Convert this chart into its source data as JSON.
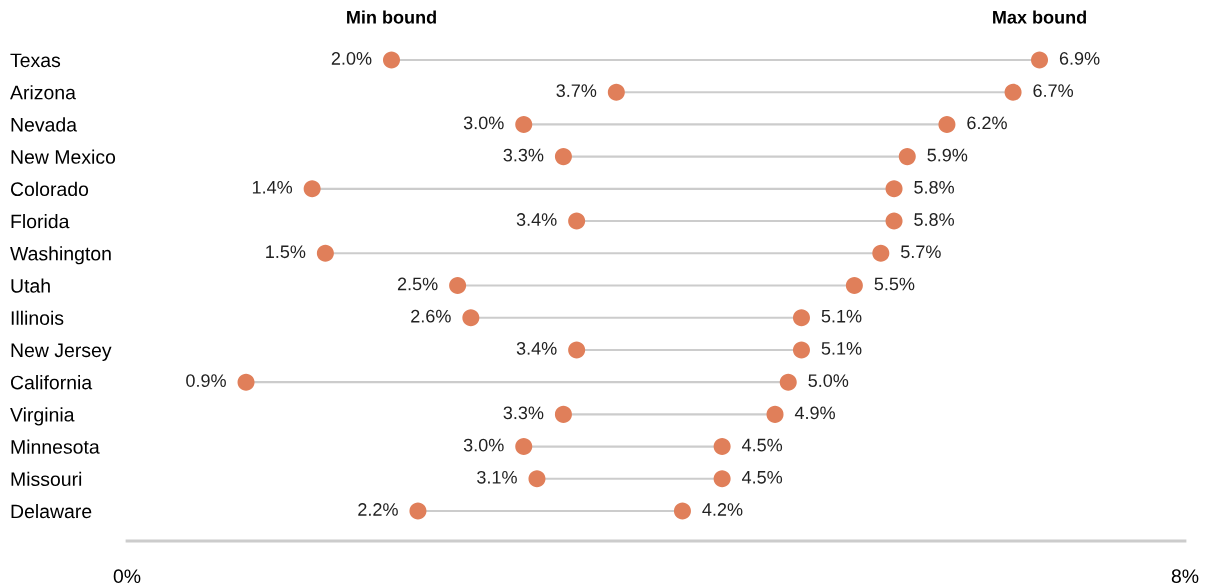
{
  "chart_data": {
    "type": "scatter",
    "orientation": "horizontal",
    "categories": [
      "Texas",
      "Arizona",
      "Nevada",
      "New Mexico",
      "Colorado",
      "Florida",
      "Washington",
      "Utah",
      "Illinois",
      "New Jersey",
      "California",
      "Virginia",
      "Minnesota",
      "Missouri",
      "Delaware"
    ],
    "series": [
      {
        "name": "Min bound",
        "color": "#e07f5a",
        "values": [
          2.0,
          3.7,
          3.0,
          3.3,
          1.4,
          3.4,
          1.5,
          2.5,
          2.6,
          3.4,
          0.9,
          3.3,
          3.0,
          3.1,
          2.2
        ],
        "value_labels": [
          "2.0%",
          "3.7%",
          "3.0%",
          "3.3%",
          "1.4%",
          "3.4%",
          "1.5%",
          "2.5%",
          "2.6%",
          "3.4%",
          "0.9%",
          "3.3%",
          "3.0%",
          "3.1%",
          "2.2%"
        ]
      },
      {
        "name": "Max bound",
        "color": "#e07f5a",
        "values": [
          6.9,
          6.7,
          6.2,
          5.9,
          5.8,
          5.8,
          5.7,
          5.5,
          5.1,
          5.1,
          5.0,
          4.9,
          4.5,
          4.5,
          4.2
        ],
        "value_labels": [
          "6.9%",
          "6.7%",
          "6.2%",
          "5.9%",
          "5.8%",
          "5.8%",
          "5.7%",
          "5.5%",
          "5.1%",
          "5.1%",
          "5.0%",
          "4.9%",
          "4.5%",
          "4.5%",
          "4.2%"
        ]
      }
    ],
    "xlim": [
      0,
      8
    ],
    "xticks": [
      {
        "value": 0,
        "label": "0%"
      },
      {
        "value": 8,
        "label": "8%"
      }
    ],
    "marker": "circle",
    "grid": false,
    "legend": false
  }
}
